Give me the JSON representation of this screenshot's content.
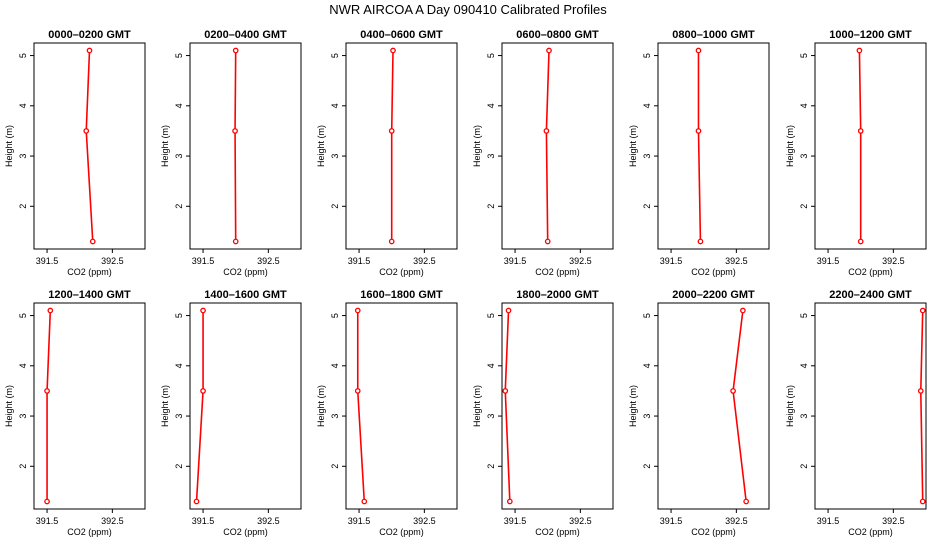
{
  "figure": {
    "title": "NWR AIRCOA A  Day 090410  Calibrated Profiles"
  },
  "colors": {
    "series": "#ff0000",
    "frame": "#000000"
  },
  "chart_data": [
    {
      "type": "line",
      "title": "0000–0200 GMT",
      "xlabel": "CO2 (ppm)",
      "ylabel": "Height (m)",
      "xlim": [
        391.3,
        393.0
      ],
      "ylim": [
        1.15,
        5.25
      ],
      "xticks": [
        391.5,
        392.5
      ],
      "xtick_labels": [
        "391.5",
        "392.5"
      ],
      "yticks": [
        2,
        3,
        4,
        5
      ],
      "ytick_labels": [
        "2",
        "3",
        "4",
        "5"
      ],
      "x": [
        392.2,
        392.1,
        392.15
      ],
      "y": [
        1.3,
        3.5,
        5.1
      ]
    },
    {
      "type": "line",
      "title": "0200–0400 GMT",
      "xlabel": "CO2 (ppm)",
      "ylabel": "Height (m)",
      "xlim": [
        391.3,
        393.0
      ],
      "ylim": [
        1.15,
        5.25
      ],
      "xticks": [
        391.5,
        392.5
      ],
      "xtick_labels": [
        "391.5",
        "392.5"
      ],
      "yticks": [
        2,
        3,
        4,
        5
      ],
      "ytick_labels": [
        "2",
        "3",
        "4",
        "5"
      ],
      "x": [
        392.0,
        391.99,
        392.0
      ],
      "y": [
        1.3,
        3.5,
        5.1
      ]
    },
    {
      "type": "line",
      "title": "0400–0600 GMT",
      "xlabel": "CO2 (ppm)",
      "ylabel": "Height (m)",
      "xlim": [
        391.3,
        393.0
      ],
      "ylim": [
        1.15,
        5.25
      ],
      "xticks": [
        391.5,
        392.5
      ],
      "xtick_labels": [
        "391.5",
        "392.5"
      ],
      "yticks": [
        2,
        3,
        4,
        5
      ],
      "ytick_labels": [
        "2",
        "3",
        "4",
        "5"
      ],
      "x": [
        392.0,
        392.0,
        392.02
      ],
      "y": [
        1.3,
        3.5,
        5.1
      ]
    },
    {
      "type": "line",
      "title": "0600–0800 GMT",
      "xlabel": "CO2 (ppm)",
      "ylabel": "Height (m)",
      "xlim": [
        391.3,
        393.0
      ],
      "ylim": [
        1.15,
        5.25
      ],
      "xticks": [
        391.5,
        392.5
      ],
      "xtick_labels": [
        "391.5",
        "392.5"
      ],
      "yticks": [
        2,
        3,
        4,
        5
      ],
      "ytick_labels": [
        "2",
        "3",
        "4",
        "5"
      ],
      "x": [
        392.0,
        391.98,
        392.02
      ],
      "y": [
        1.3,
        3.5,
        5.1
      ]
    },
    {
      "type": "line",
      "title": "0800–1000 GMT",
      "xlabel": "CO2 (ppm)",
      "ylabel": "Height (m)",
      "xlim": [
        391.3,
        393.0
      ],
      "ylim": [
        1.15,
        5.25
      ],
      "xticks": [
        391.5,
        392.5
      ],
      "xtick_labels": [
        "391.5",
        "392.5"
      ],
      "yticks": [
        2,
        3,
        4,
        5
      ],
      "ytick_labels": [
        "2",
        "3",
        "4",
        "5"
      ],
      "x": [
        391.95,
        391.92,
        391.92
      ],
      "y": [
        1.3,
        3.5,
        5.1
      ]
    },
    {
      "type": "line",
      "title": "1000–1200 GMT",
      "xlabel": "CO2 (ppm)",
      "ylabel": "Height (m)",
      "xlim": [
        391.3,
        393.0
      ],
      "ylim": [
        1.15,
        5.25
      ],
      "xticks": [
        391.5,
        392.5
      ],
      "xtick_labels": [
        "391.5",
        "392.5"
      ],
      "yticks": [
        2,
        3,
        4,
        5
      ],
      "ytick_labels": [
        "2",
        "3",
        "4",
        "5"
      ],
      "x": [
        392.0,
        392.0,
        391.98
      ],
      "y": [
        1.3,
        3.5,
        5.1
      ]
    },
    {
      "type": "line",
      "title": "1200–1400 GMT",
      "xlabel": "CO2 (ppm)",
      "ylabel": "Height (m)",
      "xlim": [
        391.3,
        393.0
      ],
      "ylim": [
        1.15,
        5.25
      ],
      "xticks": [
        391.5,
        392.5
      ],
      "xtick_labels": [
        "391.5",
        "392.5"
      ],
      "yticks": [
        2,
        3,
        4,
        5
      ],
      "ytick_labels": [
        "2",
        "3",
        "4",
        "5"
      ],
      "x": [
        391.5,
        391.5,
        391.55
      ],
      "y": [
        1.3,
        3.5,
        5.1
      ]
    },
    {
      "type": "line",
      "title": "1400–1600 GMT",
      "xlabel": "CO2 (ppm)",
      "ylabel": "Height (m)",
      "xlim": [
        391.3,
        393.0
      ],
      "ylim": [
        1.15,
        5.25
      ],
      "xticks": [
        391.5,
        392.5
      ],
      "xtick_labels": [
        "391.5",
        "392.5"
      ],
      "yticks": [
        2,
        3,
        4,
        5
      ],
      "ytick_labels": [
        "2",
        "3",
        "4",
        "5"
      ],
      "x": [
        391.4,
        391.5,
        391.5
      ],
      "y": [
        1.3,
        3.5,
        5.1
      ]
    },
    {
      "type": "line",
      "title": "1600–1800 GMT",
      "xlabel": "CO2 (ppm)",
      "ylabel": "Height (m)",
      "xlim": [
        391.3,
        393.0
      ],
      "ylim": [
        1.15,
        5.25
      ],
      "xticks": [
        391.5,
        392.5
      ],
      "xtick_labels": [
        "391.5",
        "392.5"
      ],
      "yticks": [
        2,
        3,
        4,
        5
      ],
      "ytick_labels": [
        "2",
        "3",
        "4",
        "5"
      ],
      "x": [
        391.58,
        391.48,
        391.48
      ],
      "y": [
        1.3,
        3.5,
        5.1
      ]
    },
    {
      "type": "line",
      "title": "1800–2000 GMT",
      "xlabel": "CO2 (ppm)",
      "ylabel": "Height (m)",
      "xlim": [
        391.3,
        393.0
      ],
      "ylim": [
        1.15,
        5.25
      ],
      "xticks": [
        391.5,
        392.5
      ],
      "xtick_labels": [
        "391.5",
        "392.5"
      ],
      "yticks": [
        2,
        3,
        4,
        5
      ],
      "ytick_labels": [
        "2",
        "3",
        "4",
        "5"
      ],
      "x": [
        391.42,
        391.35,
        391.4
      ],
      "y": [
        1.3,
        3.5,
        5.1
      ]
    },
    {
      "type": "line",
      "title": "2000–2200 GMT",
      "xlabel": "CO2 (ppm)",
      "ylabel": "Height (m)",
      "xlim": [
        391.3,
        393.0
      ],
      "ylim": [
        1.15,
        5.25
      ],
      "xticks": [
        391.5,
        392.5
      ],
      "xtick_labels": [
        "391.5",
        "392.5"
      ],
      "yticks": [
        2,
        3,
        4,
        5
      ],
      "ytick_labels": [
        "2",
        "3",
        "4",
        "5"
      ],
      "x": [
        392.65,
        392.45,
        392.6
      ],
      "y": [
        1.3,
        3.5,
        5.1
      ]
    },
    {
      "type": "line",
      "title": "2200–2400 GMT",
      "xlabel": "CO2 (ppm)",
      "ylabel": "Height (m)",
      "xlim": [
        391.3,
        393.0
      ],
      "ylim": [
        1.15,
        5.25
      ],
      "xticks": [
        391.5,
        392.5
      ],
      "xtick_labels": [
        "391.5",
        "392.5"
      ],
      "yticks": [
        2,
        3,
        4,
        5
      ],
      "ytick_labels": [
        "2",
        "3",
        "4",
        "5"
      ],
      "x": [
        392.95,
        392.92,
        392.95
      ],
      "y": [
        1.3,
        3.5,
        5.1
      ]
    }
  ]
}
